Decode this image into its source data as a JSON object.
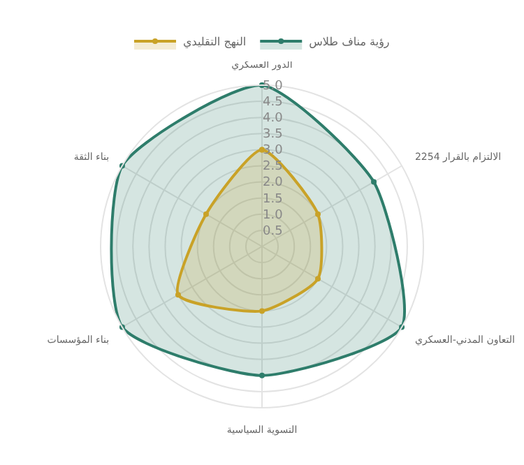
{
  "chart_data": {
    "type": "radar",
    "categories": [
      "الدور العسكري",
      "الالتزام بالقرار 2254",
      "التعاون المدني-العسكري",
      "التسوية السياسية",
      "بناء المؤسسات",
      "بناء الثقة"
    ],
    "series": [
      {
        "name": "رؤية مناف طلاس",
        "color": "#2e7d6b",
        "values": [
          5,
          4,
          5,
          4,
          5,
          5
        ]
      },
      {
        "name": "النهج التقليدي",
        "color": "#c9a227",
        "values": [
          3,
          2,
          2,
          2,
          3,
          2
        ]
      }
    ],
    "ylim": [
      0,
      5
    ],
    "yticks": [
      {
        "value": 0.5,
        "label": "0.5"
      },
      {
        "value": 1,
        "label": "1.0"
      },
      {
        "value": 1.5,
        "label": "1.5"
      },
      {
        "value": 2,
        "label": "2.0"
      },
      {
        "value": 2.5,
        "label": "2.5"
      },
      {
        "value": 3,
        "label": "3.0"
      },
      {
        "value": 3.5,
        "label": "3.5"
      },
      {
        "value": 4,
        "label": "4.0"
      },
      {
        "value": 4.5,
        "label": "4.5"
      },
      {
        "value": 5,
        "label": "5.0"
      }
    ],
    "grid": true,
    "legend": "top",
    "marker": "circle",
    "line_style": "solid"
  }
}
